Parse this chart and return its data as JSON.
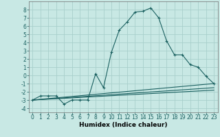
{
  "xlabel": "Humidex (Indice chaleur)",
  "background_color": "#c8e8e4",
  "grid_color": "#a8d0cc",
  "line_color": "#1a6060",
  "series": [
    {
      "x": [
        0,
        1,
        2,
        3,
        4,
        5,
        6,
        7,
        8,
        9,
        10,
        11,
        12,
        13,
        14,
        15,
        16,
        17,
        18,
        19,
        20,
        21,
        22,
        23
      ],
      "y": [
        -3.0,
        -2.5,
        -2.5,
        -2.5,
        -3.5,
        -3.0,
        -3.0,
        -3.0,
        0.2,
        -1.5,
        2.8,
        5.5,
        6.5,
        7.7,
        7.8,
        8.2,
        7.0,
        4.2,
        2.5,
        2.5,
        1.3,
        1.0,
        -0.1,
        -1.0
      ]
    },
    {
      "x": [
        0,
        23
      ],
      "y": [
        -3.0,
        -1.0
      ]
    },
    {
      "x": [
        0,
        23
      ],
      "y": [
        -3.0,
        -1.5
      ]
    },
    {
      "x": [
        0,
        23
      ],
      "y": [
        -3.0,
        -1.8
      ]
    }
  ],
  "xlim": [
    -0.5,
    23.5
  ],
  "ylim": [
    -4.5,
    9.0
  ],
  "yticks": [
    -4,
    -3,
    -2,
    -1,
    0,
    1,
    2,
    3,
    4,
    5,
    6,
    7,
    8
  ],
  "xticks": [
    0,
    1,
    2,
    3,
    4,
    5,
    6,
    7,
    8,
    9,
    10,
    11,
    12,
    13,
    14,
    15,
    16,
    17,
    18,
    19,
    20,
    21,
    22,
    23
  ],
  "tick_fontsize": 5.5,
  "xlabel_fontsize": 6.5,
  "xlabel_fontweight": "bold"
}
